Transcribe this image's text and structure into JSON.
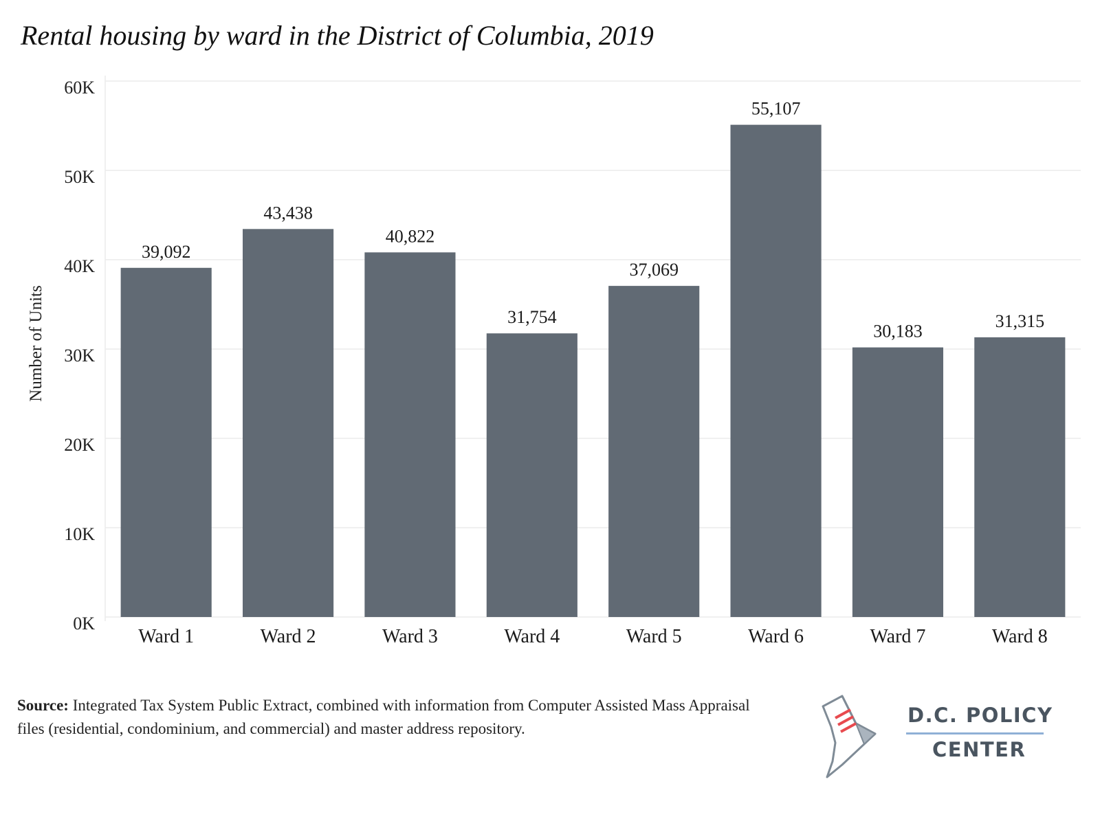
{
  "chart_data": {
    "type": "bar",
    "title": "Rental housing by ward in the District of Columbia, 2019",
    "xlabel": "",
    "ylabel": "Number of Units",
    "categories": [
      "Ward 1",
      "Ward 2",
      "Ward 3",
      "Ward 4",
      "Ward 5",
      "Ward 6",
      "Ward 7",
      "Ward 8"
    ],
    "values": [
      39092,
      43438,
      40822,
      31754,
      37069,
      55107,
      30183,
      31315
    ],
    "value_labels": [
      "39,092",
      "43,438",
      "40,822",
      "31,754",
      "37,069",
      "55,107",
      "30,183",
      "31,315"
    ],
    "yticks": [
      0,
      10000,
      20000,
      30000,
      40000,
      50000,
      60000
    ],
    "ytick_labels": [
      "0K",
      "10K",
      "20K",
      "30K",
      "40K",
      "50K",
      "60K"
    ],
    "ylim": [
      0,
      60000
    ],
    "grid": true,
    "bar_color": "#616a74"
  },
  "footer": {
    "source_label": "Source:",
    "source_text": " Integrated Tax System Public Extract, combined with information from Computer Assisted Mass Appraisal files (residential, condominium, and commercial) and master address repository."
  },
  "logo": {
    "line1": "D.C. POLICY",
    "line2": "CENTER"
  }
}
